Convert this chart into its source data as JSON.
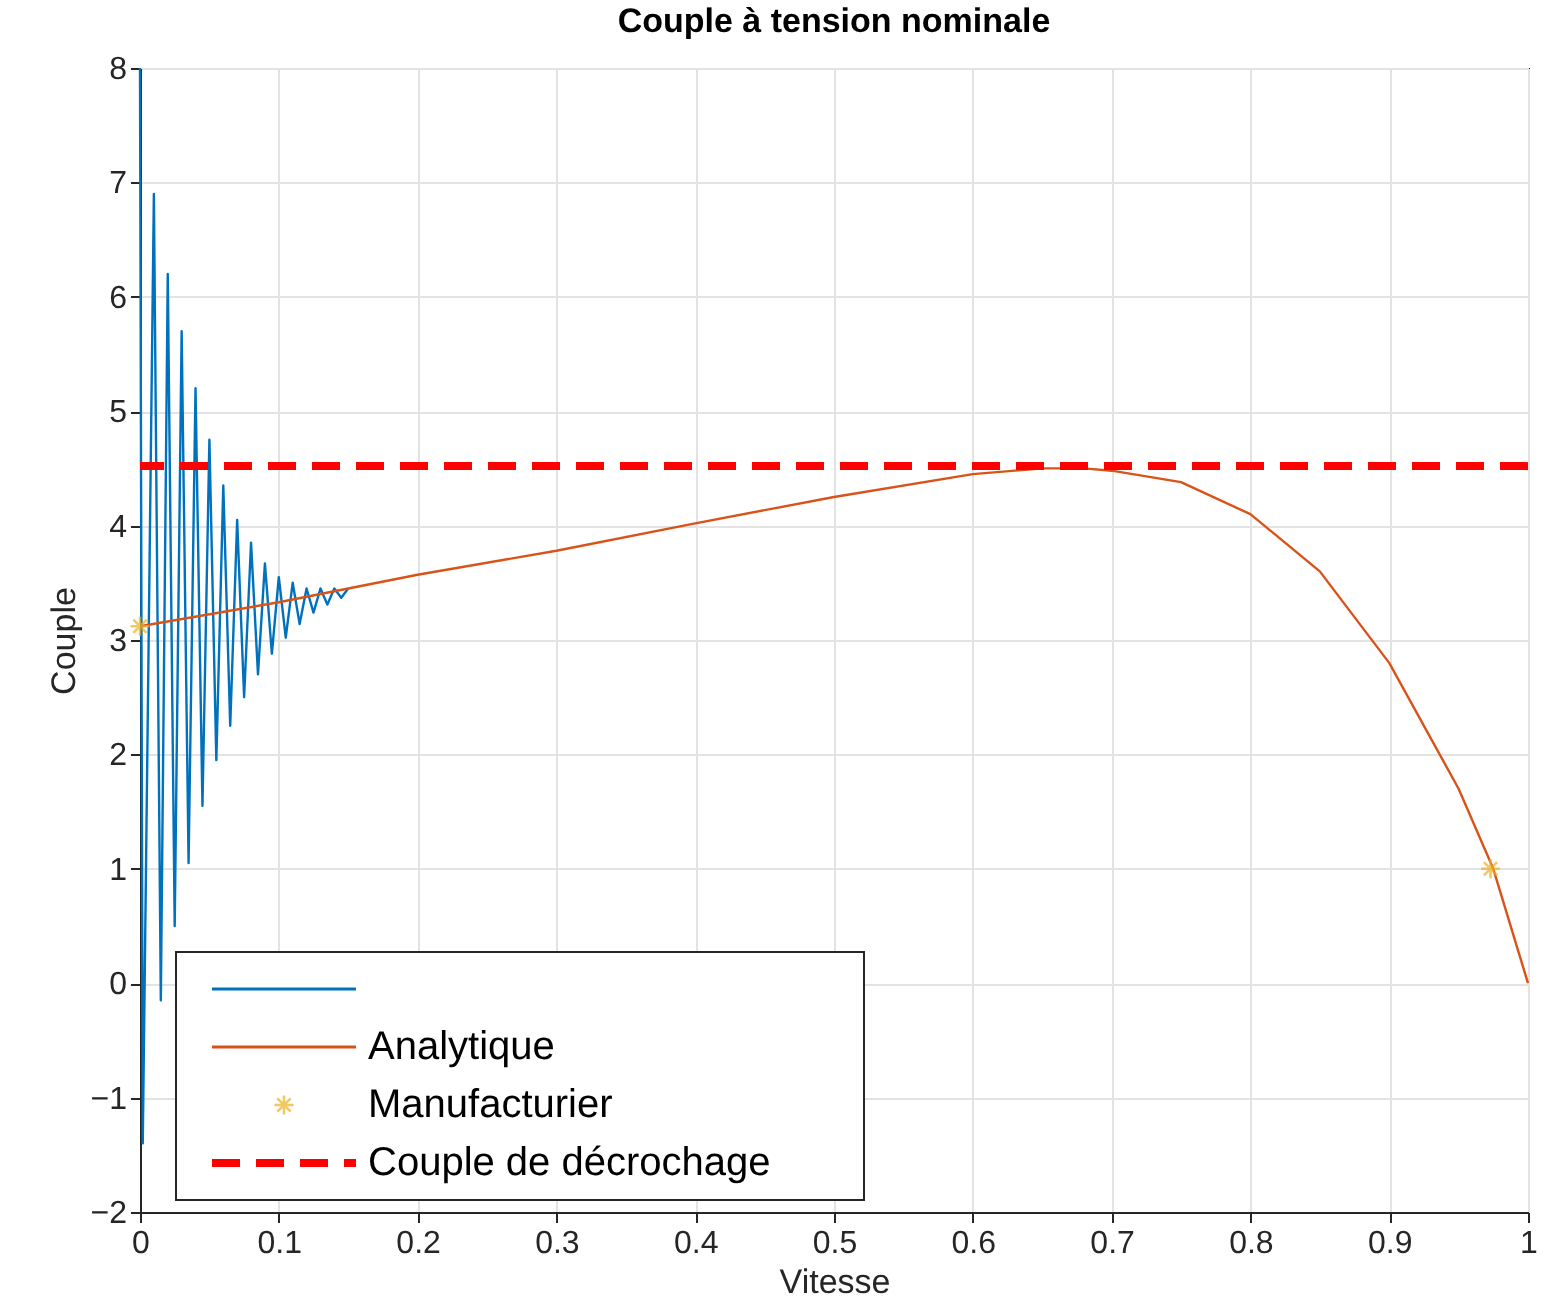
{
  "chart_data": {
    "type": "line",
    "title": "Couple à tension nominale",
    "xlabel": "Vitesse",
    "ylabel": "Couple",
    "xlim": [
      0,
      1
    ],
    "ylim": [
      -2,
      8
    ],
    "xticks": [
      0,
      0.1,
      0.2,
      0.3,
      0.4,
      0.5,
      0.6,
      0.7,
      0.8,
      0.9,
      1
    ],
    "yticks": [
      -2,
      -1,
      0,
      1,
      2,
      3,
      4,
      5,
      6,
      7,
      8
    ],
    "grid": true,
    "legend": "bottom left",
    "line_style": "solid",
    "series": [
      {
        "color": "#0072bd",
        "x": [
          0,
          0.002,
          0.01,
          0.015,
          0.02,
          0.025,
          0.03,
          0.035,
          0.04,
          0.045,
          0.05,
          0.055,
          0.06,
          0.065,
          0.07,
          0.075,
          0.08,
          0.085,
          0.09,
          0.095,
          0.1,
          0.105,
          0.11,
          0.115,
          0.12,
          0.125,
          0.13,
          0.135,
          0.14,
          0.145,
          0.15
        ],
        "values": [
          8,
          -1.4,
          6.9,
          -0.15,
          6.2,
          0.5,
          5.7,
          1.05,
          5.2,
          1.55,
          4.75,
          1.95,
          4.35,
          2.25,
          4.05,
          2.5,
          3.85,
          2.7,
          3.67,
          2.88,
          3.55,
          3.02,
          3.5,
          3.14,
          3.45,
          3.24,
          3.45,
          3.31,
          3.45,
          3.37,
          3.45
        ]
      },
      {
        "name": "Analytique",
        "color": "#d95319",
        "x": [
          0,
          0.1,
          0.2,
          0.3,
          0.4,
          0.5,
          0.6,
          0.65,
          0.68,
          0.7,
          0.75,
          0.8,
          0.85,
          0.9,
          0.95,
          0.975,
          1.0
        ],
        "values": [
          3.12,
          3.33,
          3.57,
          3.78,
          4.02,
          4.25,
          4.45,
          4.5,
          4.5,
          4.48,
          4.38,
          4.1,
          3.6,
          2.8,
          1.7,
          1.0,
          0
        ]
      },
      {
        "type": "scatter",
        "name": "Manufacturier",
        "color": "#edb120",
        "marker": "cross",
        "x": [
          0,
          0.973
        ],
        "values": [
          3.12,
          1.0
        ]
      }
    ],
    "ref_lines": [
      {
        "axis": "y",
        "value": 4.52,
        "label": "Couple de décrochage",
        "color": "#ff0000",
        "line_style": "dashed"
      }
    ]
  }
}
